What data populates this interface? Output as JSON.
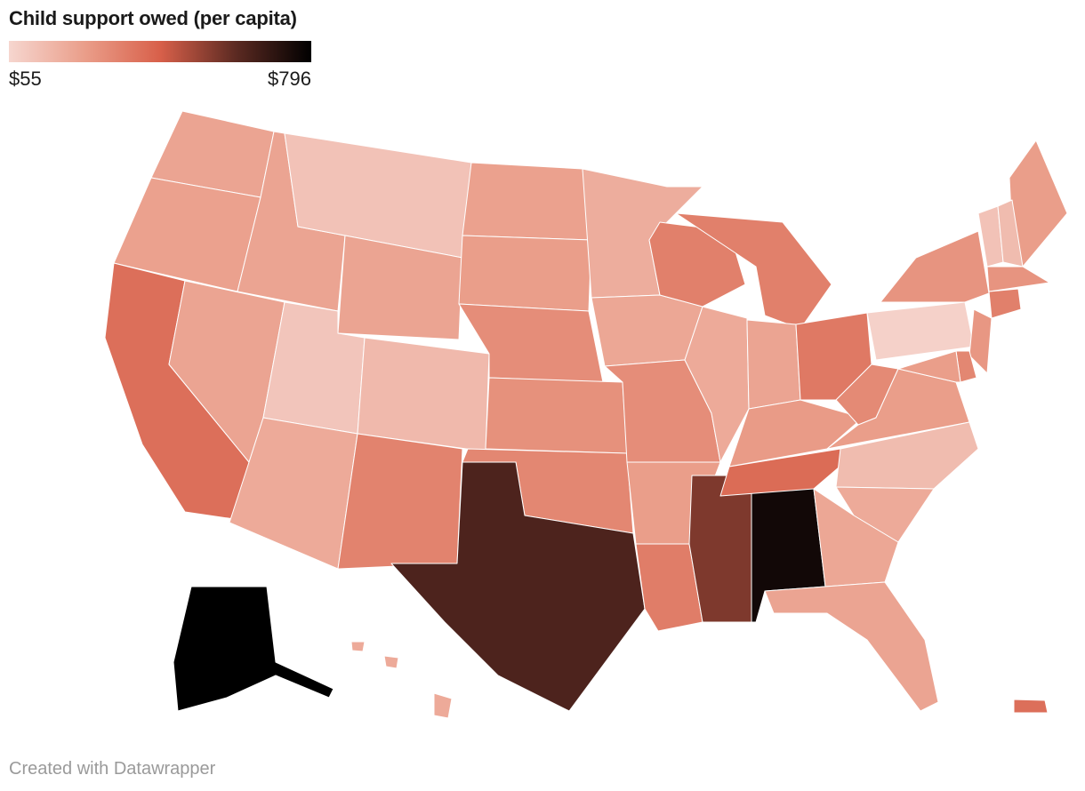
{
  "title": "Child support owed (per capita)",
  "legend": {
    "min_label": "$55",
    "max_label": "$796",
    "min_value": 55,
    "max_value": 796,
    "colors": [
      "#f6d6cf",
      "#ea9e8a",
      "#d8604a",
      "#5c2a22",
      "#000000"
    ]
  },
  "credit": "Created with Datawrapper",
  "chart_data": {
    "type": "choropleth",
    "value_unit": "$ per capita",
    "states": [
      {
        "id": "WA",
        "value": 220
      },
      {
        "id": "OR",
        "value": 230
      },
      {
        "id": "CA",
        "value": 380
      },
      {
        "id": "NV",
        "value": 220
      },
      {
        "id": "ID",
        "value": 220
      },
      {
        "id": "MT",
        "value": 120
      },
      {
        "id": "WY",
        "value": 220
      },
      {
        "id": "UT",
        "value": 110
      },
      {
        "id": "CO",
        "value": 150
      },
      {
        "id": "AZ",
        "value": 200
      },
      {
        "id": "NM",
        "value": 320
      },
      {
        "id": "ND",
        "value": 230
      },
      {
        "id": "SD",
        "value": 240
      },
      {
        "id": "NE",
        "value": 290
      },
      {
        "id": "KS",
        "value": 280
      },
      {
        "id": "OK",
        "value": 310
      },
      {
        "id": "TX",
        "value": 640
      },
      {
        "id": "MN",
        "value": 190
      },
      {
        "id": "IA",
        "value": 210
      },
      {
        "id": "MO",
        "value": 290
      },
      {
        "id": "AR",
        "value": 240
      },
      {
        "id": "LA",
        "value": 340
      },
      {
        "id": "WI",
        "value": 330
      },
      {
        "id": "IL",
        "value": 200
      },
      {
        "id": "MS",
        "value": 560
      },
      {
        "id": "AL",
        "value": 760
      },
      {
        "id": "MI",
        "value": 330
      },
      {
        "id": "IN",
        "value": 220
      },
      {
        "id": "KY",
        "value": 250
      },
      {
        "id": "TN",
        "value": 390
      },
      {
        "id": "OH",
        "value": 350
      },
      {
        "id": "WV",
        "value": 300
      },
      {
        "id": "VA",
        "value": 240
      },
      {
        "id": "NC",
        "value": 140
      },
      {
        "id": "SC",
        "value": 200
      },
      {
        "id": "GA",
        "value": 210
      },
      {
        "id": "FL",
        "value": 220
      },
      {
        "id": "PA",
        "value": 70
      },
      {
        "id": "NY",
        "value": 270
      },
      {
        "id": "ME",
        "value": 240
      },
      {
        "id": "VT",
        "value": 120
      },
      {
        "id": "NH",
        "value": 140
      },
      {
        "id": "MA",
        "value": 270
      },
      {
        "id": "CT",
        "value": 330
      },
      {
        "id": "NJ",
        "value": 260
      },
      {
        "id": "DE",
        "value": 310
      },
      {
        "id": "MD",
        "value": 240
      },
      {
        "id": "AK",
        "value": 796
      },
      {
        "id": "HI",
        "value": 200
      },
      {
        "id": "PR",
        "value": 380
      }
    ]
  }
}
